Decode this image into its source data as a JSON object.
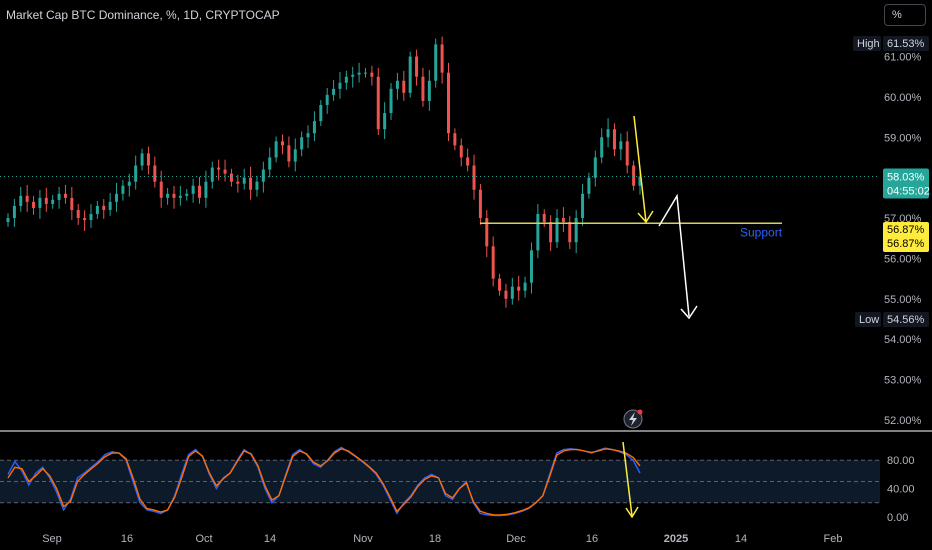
{
  "header": {
    "title": "Market Cap BTC Dominance, %, 1D, CRYPTOCAP",
    "unit_button": "%"
  },
  "colors": {
    "up": "#26a69a",
    "down": "#ef5350",
    "support_line": "#d4d45a",
    "support_label": "#2962ff",
    "projection_down": "#ffeb3b",
    "projection_white": "#ffffff",
    "stoch_k": "#2962ff",
    "stoch_d": "#ff6d00",
    "price_tag": "#26a69a",
    "support_tag": "#ffeb3b"
  },
  "chart_data": [
    {
      "type": "candlestick",
      "title": "Market Cap BTC Dominance, %, 1D, CRYPTOCAP",
      "ylim": [
        51.75,
        62.4
      ],
      "y_ticks": [
        "61.00%",
        "60.00%",
        "59.00%",
        "57.00%",
        "56.00%",
        "55.00%",
        "54.00%",
        "53.00%",
        "52.00%"
      ],
      "x_ticks": [
        "Sep",
        "16",
        "Oct",
        "14",
        "Nov",
        "18",
        "Dec",
        "16",
        "2025",
        "14",
        "Feb"
      ],
      "close": [
        57.0,
        57.3,
        57.55,
        57.4,
        57.25,
        57.5,
        57.35,
        57.45,
        57.6,
        57.5,
        57.2,
        57.0,
        56.95,
        57.1,
        57.3,
        57.2,
        57.4,
        57.6,
        57.8,
        57.9,
        58.3,
        58.6,
        58.3,
        57.9,
        57.5,
        57.6,
        57.5,
        57.55,
        57.6,
        57.8,
        57.5,
        57.9,
        58.25,
        58.2,
        58.1,
        57.9,
        57.85,
        58.0,
        57.7,
        57.9,
        58.2,
        58.5,
        58.9,
        58.8,
        58.4,
        58.7,
        59.0,
        59.1,
        59.4,
        59.8,
        60.05,
        60.2,
        60.35,
        60.5,
        60.55,
        60.6,
        60.6,
        60.5,
        59.2,
        59.6,
        60.2,
        60.4,
        60.1,
        61.0,
        60.5,
        59.9,
        60.4,
        61.3,
        60.6,
        59.1,
        58.8,
        58.5,
        58.3,
        57.7,
        57.0,
        56.3,
        55.5,
        55.2,
        55.0,
        55.3,
        55.2,
        55.4,
        56.2,
        57.1,
        56.9,
        56.4,
        57.0,
        56.9,
        56.4,
        57.0,
        57.6,
        58.0,
        58.5,
        59.0,
        59.2,
        58.7,
        58.9,
        58.3,
        57.8,
        58.03
      ],
      "high": 61.53,
      "low": 54.56,
      "current_price": "58.03%",
      "countdown": "04:55:02",
      "support_level": 56.87,
      "support_tags": [
        "56.87%",
        "56.87%"
      ],
      "high_label": "High",
      "high_value": "61.53%",
      "low_label": "Low",
      "low_value": "54.56%",
      "support_text": "Support"
    },
    {
      "type": "line",
      "name": "Stochastic",
      "ylim": [
        0,
        100
      ],
      "y_ticks": [
        "80.00",
        "40.00",
        "0.00"
      ],
      "levels": [
        80,
        50,
        20
      ],
      "series": [
        {
          "name": "K",
          "values": [
            60,
            78,
            65,
            45,
            62,
            70,
            55,
            35,
            10,
            25,
            55,
            62,
            70,
            78,
            88,
            92,
            90,
            80,
            50,
            20,
            10,
            8,
            5,
            10,
            30,
            60,
            88,
            95,
            85,
            60,
            40,
            55,
            62,
            80,
            95,
            88,
            70,
            40,
            20,
            30,
            60,
            88,
            95,
            88,
            75,
            70,
            80,
            92,
            98,
            92,
            85,
            78,
            70,
            60,
            45,
            25,
            5,
            20,
            30,
            45,
            55,
            60,
            55,
            30,
            25,
            40,
            50,
            20,
            5,
            3,
            2,
            2,
            3,
            5,
            8,
            12,
            20,
            30,
            60,
            90,
            95,
            96,
            95,
            93,
            90,
            94,
            97,
            95,
            92,
            88,
            80,
            62
          ]
        },
        {
          "name": "D",
          "values": [
            55,
            70,
            68,
            50,
            58,
            68,
            58,
            40,
            15,
            22,
            50,
            60,
            68,
            76,
            85,
            90,
            90,
            82,
            55,
            25,
            12,
            10,
            7,
            10,
            28,
            55,
            85,
            93,
            86,
            62,
            44,
            54,
            62,
            78,
            93,
            89,
            72,
            44,
            24,
            30,
            58,
            85,
            93,
            89,
            77,
            72,
            79,
            90,
            96,
            93,
            86,
            79,
            71,
            62,
            47,
            28,
            8,
            18,
            28,
            43,
            53,
            58,
            55,
            33,
            27,
            40,
            48,
            22,
            8,
            5,
            3,
            3,
            4,
            6,
            9,
            13,
            20,
            30,
            57,
            87,
            93,
            95,
            95,
            93,
            91,
            93,
            96,
            95,
            93,
            90,
            84,
            72
          ]
        }
      ],
      "x_ticks": [
        "Sep",
        "16",
        "Oct",
        "14",
        "Nov",
        "18",
        "Dec",
        "16",
        "2025",
        "14",
        "Feb"
      ]
    }
  ]
}
